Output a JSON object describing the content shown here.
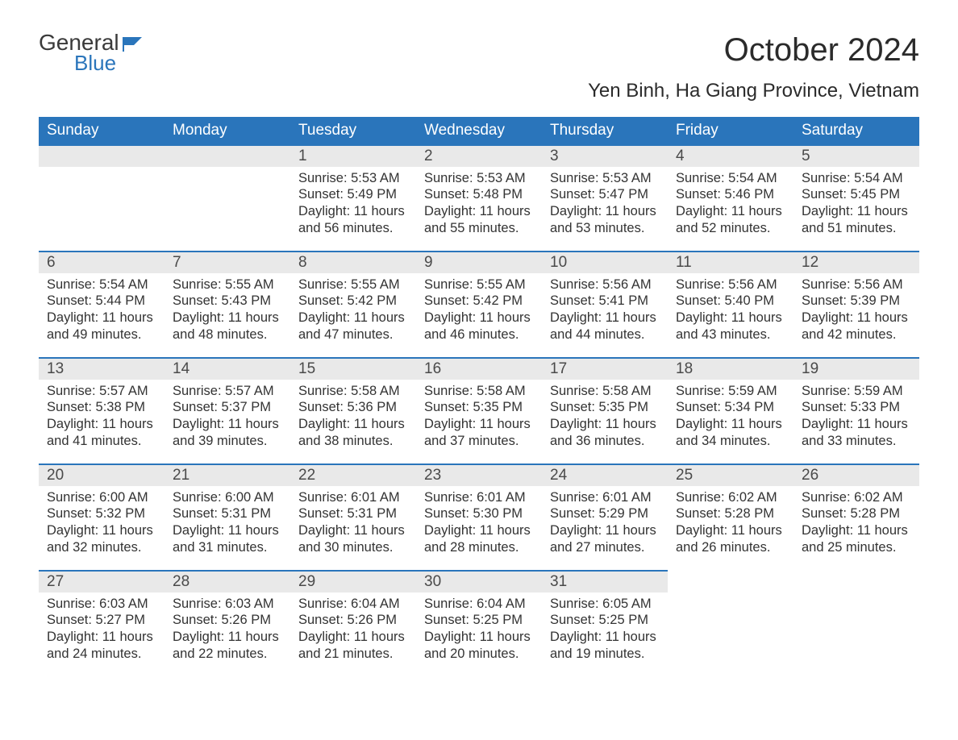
{
  "logo": {
    "general": "General",
    "blue": "Blue",
    "icon_color": "#2a75bb"
  },
  "title": "October 2024",
  "location": "Yen Binh, Ha Giang Province, Vietnam",
  "colors": {
    "header_bg": "#2a75bb",
    "header_text": "#ffffff",
    "daynum_bg": "#e9e9e9",
    "daynum_border": "#2a75bb",
    "body_text": "#333333",
    "page_bg": "#ffffff"
  },
  "typography": {
    "title_fontsize": 40,
    "location_fontsize": 24,
    "dow_fontsize": 19,
    "daynum_fontsize": 19,
    "body_fontsize": 16.5
  },
  "layout": {
    "columns": 7,
    "rows": 5,
    "first_day_column_index": 2
  },
  "days_of_week": [
    "Sunday",
    "Monday",
    "Tuesday",
    "Wednesday",
    "Thursday",
    "Friday",
    "Saturday"
  ],
  "weeks": [
    [
      null,
      null,
      {
        "n": "1",
        "sunrise": "Sunrise: 5:53 AM",
        "sunset": "Sunset: 5:49 PM",
        "day1": "Daylight: 11 hours",
        "day2": "and 56 minutes."
      },
      {
        "n": "2",
        "sunrise": "Sunrise: 5:53 AM",
        "sunset": "Sunset: 5:48 PM",
        "day1": "Daylight: 11 hours",
        "day2": "and 55 minutes."
      },
      {
        "n": "3",
        "sunrise": "Sunrise: 5:53 AM",
        "sunset": "Sunset: 5:47 PM",
        "day1": "Daylight: 11 hours",
        "day2": "and 53 minutes."
      },
      {
        "n": "4",
        "sunrise": "Sunrise: 5:54 AM",
        "sunset": "Sunset: 5:46 PM",
        "day1": "Daylight: 11 hours",
        "day2": "and 52 minutes."
      },
      {
        "n": "5",
        "sunrise": "Sunrise: 5:54 AM",
        "sunset": "Sunset: 5:45 PM",
        "day1": "Daylight: 11 hours",
        "day2": "and 51 minutes."
      }
    ],
    [
      {
        "n": "6",
        "sunrise": "Sunrise: 5:54 AM",
        "sunset": "Sunset: 5:44 PM",
        "day1": "Daylight: 11 hours",
        "day2": "and 49 minutes."
      },
      {
        "n": "7",
        "sunrise": "Sunrise: 5:55 AM",
        "sunset": "Sunset: 5:43 PM",
        "day1": "Daylight: 11 hours",
        "day2": "and 48 minutes."
      },
      {
        "n": "8",
        "sunrise": "Sunrise: 5:55 AM",
        "sunset": "Sunset: 5:42 PM",
        "day1": "Daylight: 11 hours",
        "day2": "and 47 minutes."
      },
      {
        "n": "9",
        "sunrise": "Sunrise: 5:55 AM",
        "sunset": "Sunset: 5:42 PM",
        "day1": "Daylight: 11 hours",
        "day2": "and 46 minutes."
      },
      {
        "n": "10",
        "sunrise": "Sunrise: 5:56 AM",
        "sunset": "Sunset: 5:41 PM",
        "day1": "Daylight: 11 hours",
        "day2": "and 44 minutes."
      },
      {
        "n": "11",
        "sunrise": "Sunrise: 5:56 AM",
        "sunset": "Sunset: 5:40 PM",
        "day1": "Daylight: 11 hours",
        "day2": "and 43 minutes."
      },
      {
        "n": "12",
        "sunrise": "Sunrise: 5:56 AM",
        "sunset": "Sunset: 5:39 PM",
        "day1": "Daylight: 11 hours",
        "day2": "and 42 minutes."
      }
    ],
    [
      {
        "n": "13",
        "sunrise": "Sunrise: 5:57 AM",
        "sunset": "Sunset: 5:38 PM",
        "day1": "Daylight: 11 hours",
        "day2": "and 41 minutes."
      },
      {
        "n": "14",
        "sunrise": "Sunrise: 5:57 AM",
        "sunset": "Sunset: 5:37 PM",
        "day1": "Daylight: 11 hours",
        "day2": "and 39 minutes."
      },
      {
        "n": "15",
        "sunrise": "Sunrise: 5:58 AM",
        "sunset": "Sunset: 5:36 PM",
        "day1": "Daylight: 11 hours",
        "day2": "and 38 minutes."
      },
      {
        "n": "16",
        "sunrise": "Sunrise: 5:58 AM",
        "sunset": "Sunset: 5:35 PM",
        "day1": "Daylight: 11 hours",
        "day2": "and 37 minutes."
      },
      {
        "n": "17",
        "sunrise": "Sunrise: 5:58 AM",
        "sunset": "Sunset: 5:35 PM",
        "day1": "Daylight: 11 hours",
        "day2": "and 36 minutes."
      },
      {
        "n": "18",
        "sunrise": "Sunrise: 5:59 AM",
        "sunset": "Sunset: 5:34 PM",
        "day1": "Daylight: 11 hours",
        "day2": "and 34 minutes."
      },
      {
        "n": "19",
        "sunrise": "Sunrise: 5:59 AM",
        "sunset": "Sunset: 5:33 PM",
        "day1": "Daylight: 11 hours",
        "day2": "and 33 minutes."
      }
    ],
    [
      {
        "n": "20",
        "sunrise": "Sunrise: 6:00 AM",
        "sunset": "Sunset: 5:32 PM",
        "day1": "Daylight: 11 hours",
        "day2": "and 32 minutes."
      },
      {
        "n": "21",
        "sunrise": "Sunrise: 6:00 AM",
        "sunset": "Sunset: 5:31 PM",
        "day1": "Daylight: 11 hours",
        "day2": "and 31 minutes."
      },
      {
        "n": "22",
        "sunrise": "Sunrise: 6:01 AM",
        "sunset": "Sunset: 5:31 PM",
        "day1": "Daylight: 11 hours",
        "day2": "and 30 minutes."
      },
      {
        "n": "23",
        "sunrise": "Sunrise: 6:01 AM",
        "sunset": "Sunset: 5:30 PM",
        "day1": "Daylight: 11 hours",
        "day2": "and 28 minutes."
      },
      {
        "n": "24",
        "sunrise": "Sunrise: 6:01 AM",
        "sunset": "Sunset: 5:29 PM",
        "day1": "Daylight: 11 hours",
        "day2": "and 27 minutes."
      },
      {
        "n": "25",
        "sunrise": "Sunrise: 6:02 AM",
        "sunset": "Sunset: 5:28 PM",
        "day1": "Daylight: 11 hours",
        "day2": "and 26 minutes."
      },
      {
        "n": "26",
        "sunrise": "Sunrise: 6:02 AM",
        "sunset": "Sunset: 5:28 PM",
        "day1": "Daylight: 11 hours",
        "day2": "and 25 minutes."
      }
    ],
    [
      {
        "n": "27",
        "sunrise": "Sunrise: 6:03 AM",
        "sunset": "Sunset: 5:27 PM",
        "day1": "Daylight: 11 hours",
        "day2": "and 24 minutes."
      },
      {
        "n": "28",
        "sunrise": "Sunrise: 6:03 AM",
        "sunset": "Sunset: 5:26 PM",
        "day1": "Daylight: 11 hours",
        "day2": "and 22 minutes."
      },
      {
        "n": "29",
        "sunrise": "Sunrise: 6:04 AM",
        "sunset": "Sunset: 5:26 PM",
        "day1": "Daylight: 11 hours",
        "day2": "and 21 minutes."
      },
      {
        "n": "30",
        "sunrise": "Sunrise: 6:04 AM",
        "sunset": "Sunset: 5:25 PM",
        "day1": "Daylight: 11 hours",
        "day2": "and 20 minutes."
      },
      {
        "n": "31",
        "sunrise": "Sunrise: 6:05 AM",
        "sunset": "Sunset: 5:25 PM",
        "day1": "Daylight: 11 hours",
        "day2": "and 19 minutes."
      },
      null,
      null
    ]
  ]
}
